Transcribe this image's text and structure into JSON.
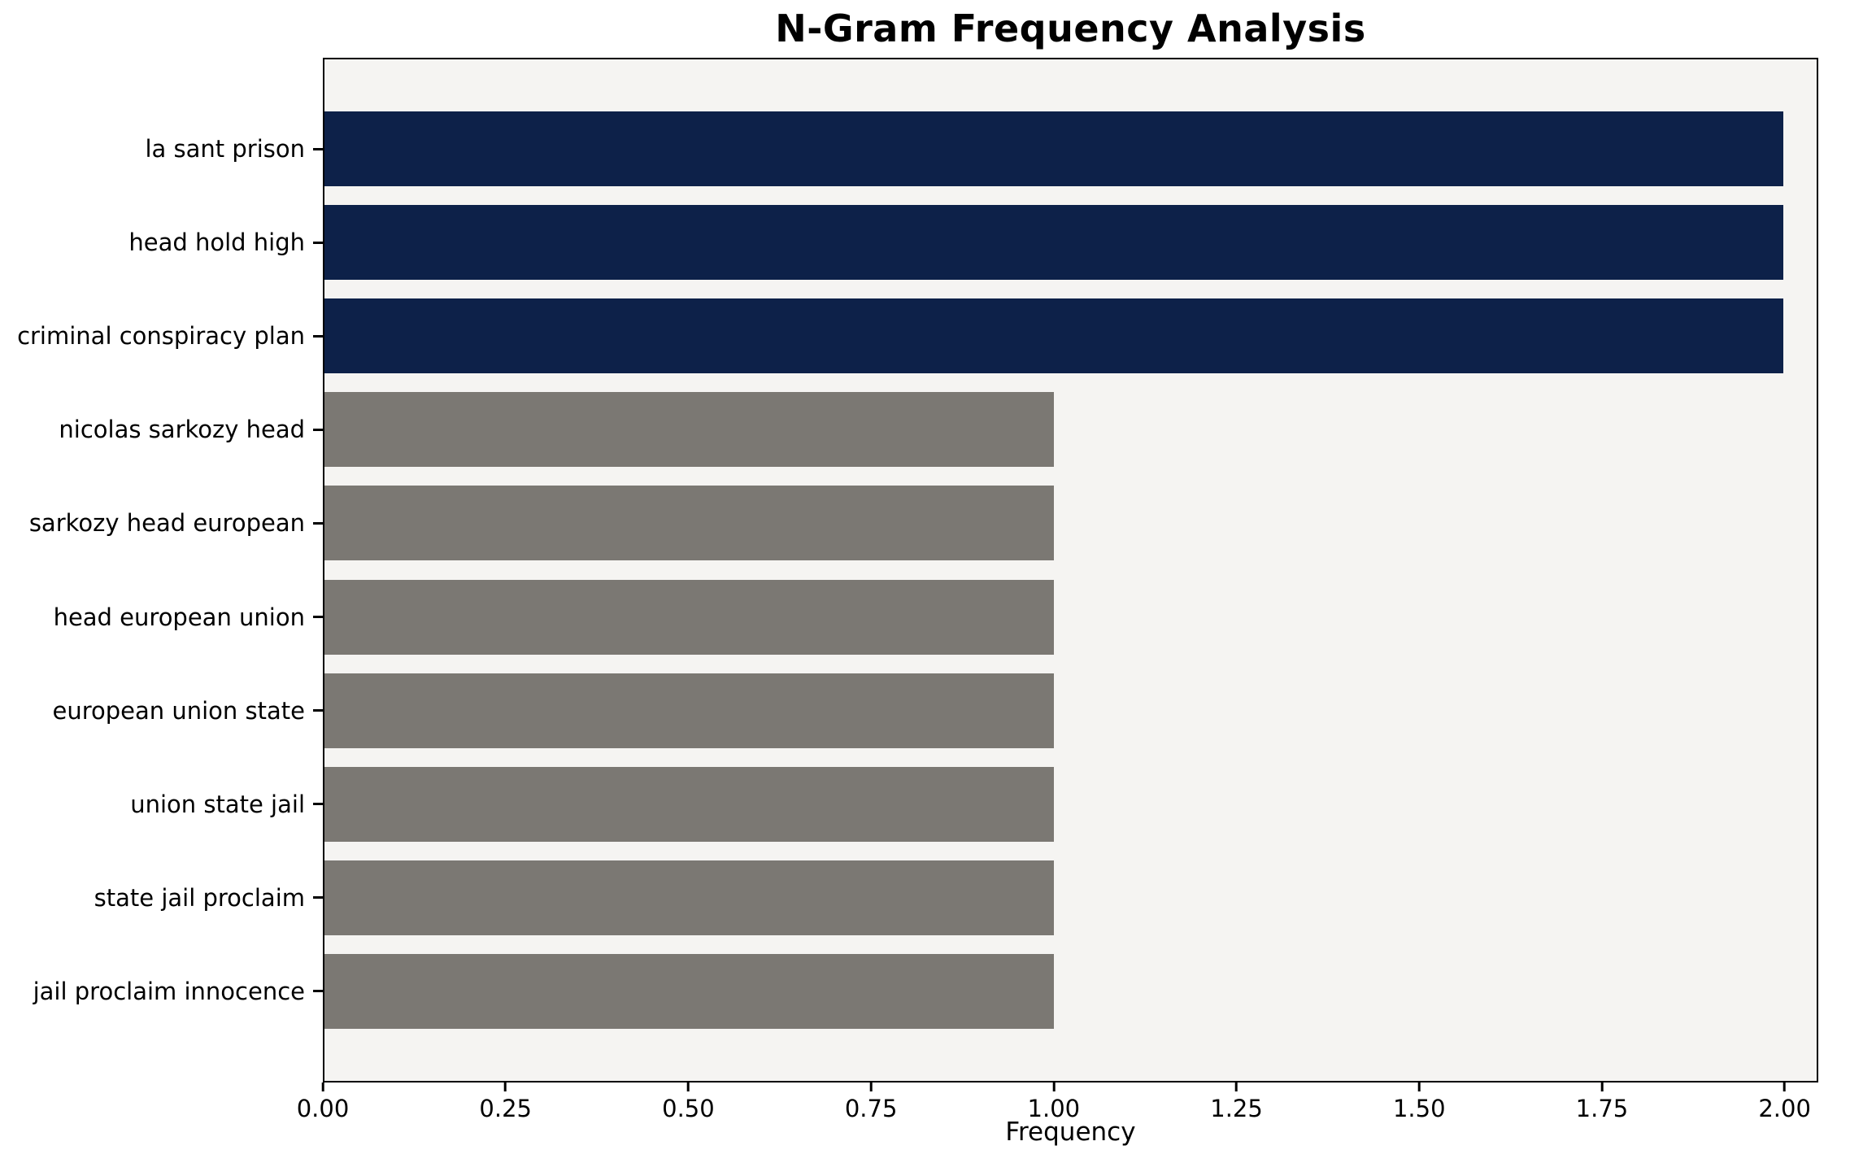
{
  "chart_data": {
    "type": "bar",
    "orientation": "horizontal",
    "title": "N-Gram Frequency Analysis",
    "xlabel": "Frequency",
    "ylabel": "",
    "categories": [
      "la sant prison",
      "head hold high",
      "criminal conspiracy plan",
      "nicolas sarkozy head",
      "sarkozy head european",
      "head european union",
      "european union state",
      "union state jail",
      "state jail proclaim",
      "jail proclaim innocence"
    ],
    "values": [
      2,
      2,
      2,
      1,
      1,
      1,
      1,
      1,
      1,
      1
    ],
    "bar_colors": [
      "highlight",
      "highlight",
      "highlight",
      "default",
      "default",
      "default",
      "default",
      "default",
      "default",
      "default"
    ],
    "xlim": [
      0,
      2.046
    ],
    "xticks": [
      0.0,
      0.25,
      0.5,
      0.75,
      1.0,
      1.25,
      1.5,
      1.75,
      2.0
    ],
    "xtick_labels": [
      "0.00",
      "0.25",
      "0.50",
      "0.75",
      "1.00",
      "1.25",
      "1.50",
      "1.75",
      "2.00"
    ],
    "colors": {
      "highlight": "#0d2149",
      "default": "#7b7873",
      "plot_bg": "#f5f4f2",
      "figure_bg": "#ffffff",
      "axis": "#000000"
    },
    "grid": false,
    "legend": null
  }
}
